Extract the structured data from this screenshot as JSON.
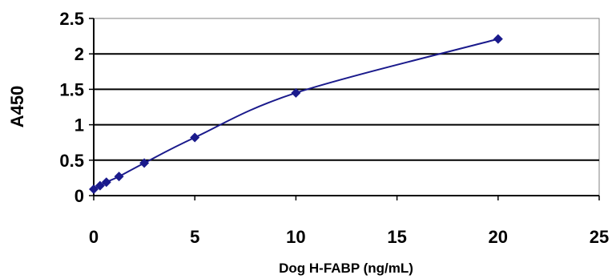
{
  "chart_data": {
    "type": "scatter",
    "title": "",
    "xlabel": "Dog H-FABP (ng/mL)",
    "ylabel": "A450",
    "xlim": [
      0,
      25
    ],
    "ylim": [
      0,
      2.5
    ],
    "x_ticks": [
      "0",
      "5",
      "10",
      "15",
      "20",
      "25"
    ],
    "y_ticks": [
      "0",
      "0.5",
      "1",
      "1.5",
      "2",
      "2.5"
    ],
    "grid": "horizontal",
    "legend": "none",
    "colors": {
      "marker": "#1a1a8c",
      "line": "#1a1a8c",
      "grid": "#000000",
      "plot_background": "#ffffff"
    },
    "series": [
      {
        "x": [
          0,
          0.3125,
          0.625,
          1.25,
          2.5,
          5,
          10,
          20
        ],
        "y": [
          0.09,
          0.14,
          0.19,
          0.27,
          0.46,
          0.82,
          1.45,
          2.21
        ]
      }
    ],
    "trendline": {
      "type": "smooth",
      "x": [
        0,
        0.3125,
        0.625,
        1.25,
        2.5,
        5,
        10,
        20
      ],
      "y": [
        0.09,
        0.14,
        0.19,
        0.27,
        0.46,
        0.82,
        1.45,
        2.21
      ]
    }
  }
}
